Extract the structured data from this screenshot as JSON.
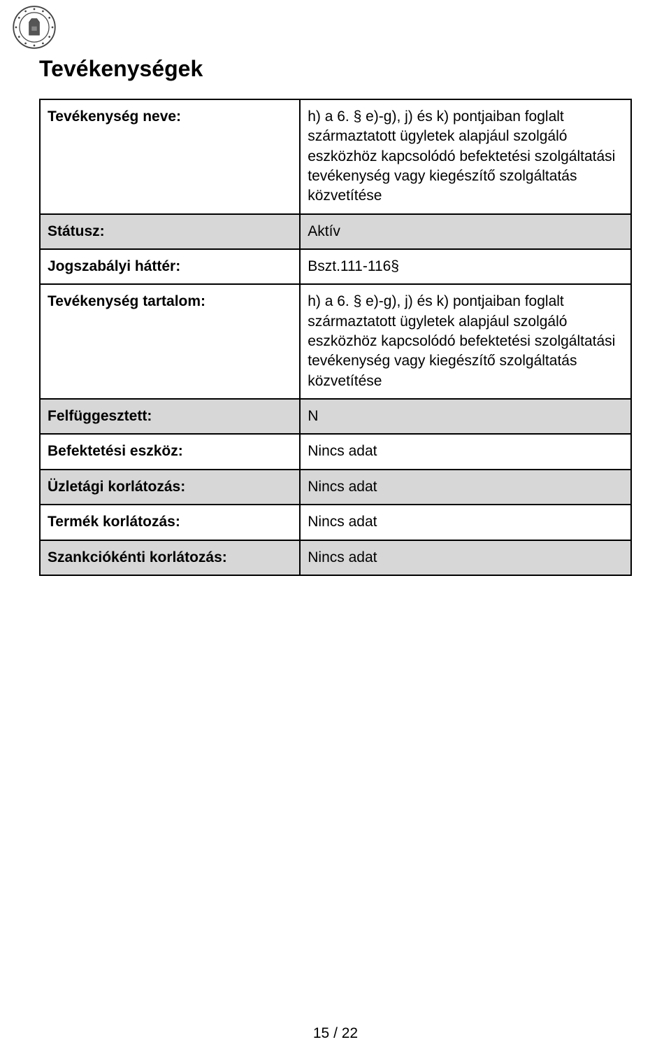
{
  "page": {
    "title": "Tevékenységek",
    "footer": "15 / 22",
    "colors": {
      "shaded_bg": "#d7d7d7",
      "border": "#000000",
      "text": "#000000",
      "page_bg": "#ffffff"
    }
  },
  "table": {
    "rows": [
      {
        "label": "Tevékenység neve:",
        "value": "h) a 6. § e)-g), j) és k) pontjaiban foglalt származtatott ügyletek alapjául szolgáló eszközhöz kapcsolódó befektetési szolgáltatási tevékenység vagy kiegészítő szolgáltatás közvetítése",
        "shaded": false
      },
      {
        "label": "Státusz:",
        "value": "Aktív",
        "shaded": true
      },
      {
        "label": "Jogszabályi háttér:",
        "value": "Bszt.111-116§",
        "shaded": false
      },
      {
        "label": "Tevékenység tartalom:",
        "value": "h) a 6. § e)-g), j) és k) pontjaiban foglalt származtatott ügyletek alapjául szolgáló eszközhöz kapcsolódó befektetési szolgáltatási tevékenység vagy kiegészítő szolgáltatás közvetítése",
        "shaded": false
      },
      {
        "label": "Felfüggesztett:",
        "value": "N",
        "shaded": true
      },
      {
        "label": "Befektetési eszköz:",
        "value": "Nincs adat",
        "shaded": false
      },
      {
        "label": "Üzletági korlátozás:",
        "value": "Nincs adat",
        "shaded": true
      },
      {
        "label": "Termék korlátozás:",
        "value": "Nincs adat",
        "shaded": false
      },
      {
        "label": "Szankciókénti korlátozás:",
        "value": "Nincs adat",
        "shaded": true
      }
    ]
  }
}
